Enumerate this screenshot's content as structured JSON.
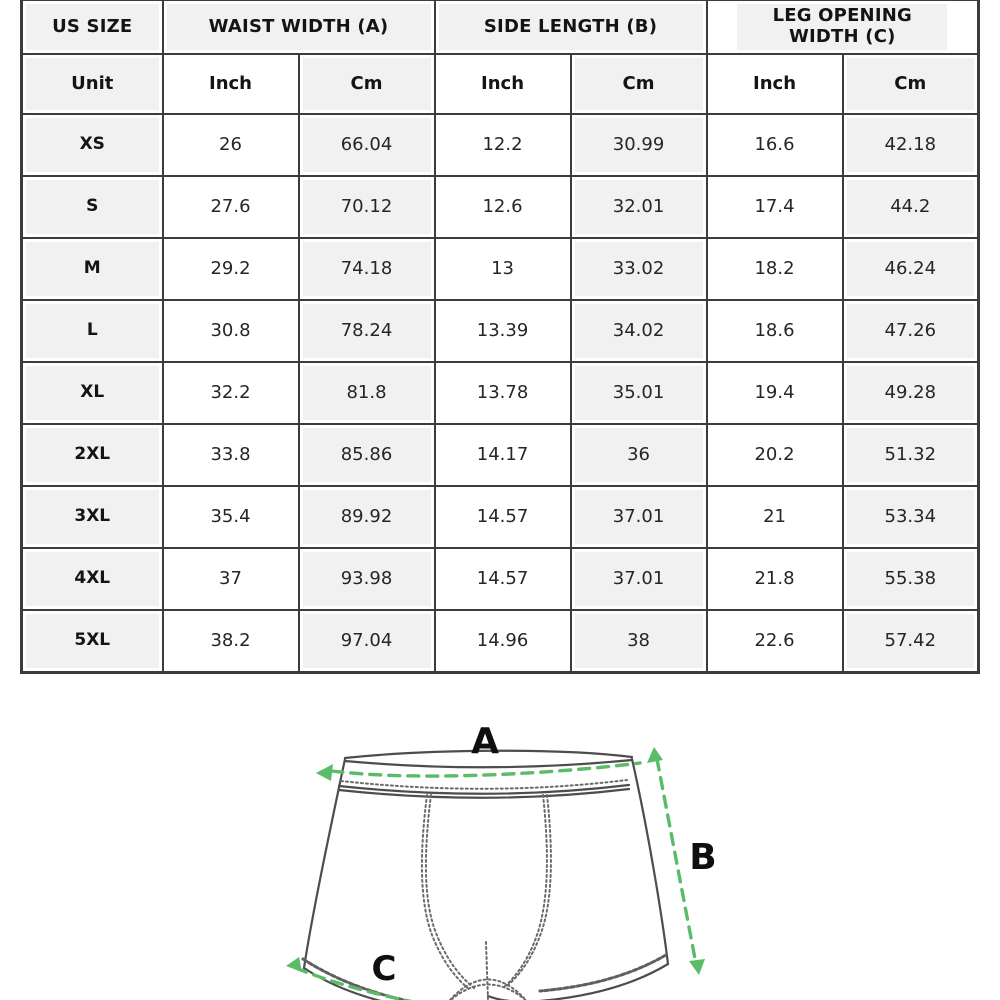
{
  "table": {
    "corner_label": "US SIZE",
    "groups": [
      {
        "label": "WAIST WIDTH (A)"
      },
      {
        "label": "SIDE LENGTH (B)"
      },
      {
        "label": "LEG OPENING WIDTH (C)"
      }
    ],
    "unit_row": [
      "Unit",
      "Inch",
      "Cm",
      "Inch",
      "Cm",
      "Inch",
      "Cm"
    ],
    "rows": [
      {
        "size": "XS",
        "values": [
          "26",
          "66.04",
          "12.2",
          "30.99",
          "16.6",
          "42.18"
        ]
      },
      {
        "size": "S",
        "values": [
          "27.6",
          "70.12",
          "12.6",
          "32.01",
          "17.4",
          "44.2"
        ]
      },
      {
        "size": "M",
        "values": [
          "29.2",
          "74.18",
          "13",
          "33.02",
          "18.2",
          "46.24"
        ]
      },
      {
        "size": "L",
        "values": [
          "30.8",
          "78.24",
          "13.39",
          "34.02",
          "18.6",
          "47.26"
        ]
      },
      {
        "size": "XL",
        "values": [
          "32.2",
          "81.8",
          "13.78",
          "35.01",
          "19.4",
          "49.28"
        ]
      },
      {
        "size": "2XL",
        "values": [
          "33.8",
          "85.86",
          "14.17",
          "36",
          "20.2",
          "51.32"
        ]
      },
      {
        "size": "3XL",
        "values": [
          "35.4",
          "89.92",
          "14.57",
          "37.01",
          "21",
          "53.34"
        ]
      },
      {
        "size": "4XL",
        "values": [
          "37",
          "93.98",
          "14.57",
          "37.01",
          "21.8",
          "55.38"
        ]
      },
      {
        "size": "5XL",
        "values": [
          "38.2",
          "97.04",
          "14.96",
          "38",
          "22.6",
          "57.42"
        ]
      }
    ]
  },
  "diagram": {
    "labels": {
      "a": "A",
      "b": "B",
      "c": "C"
    },
    "measure_color": "#5abb68",
    "outline_color": "#4d4d4d",
    "stitch_color": "#6a6a6a"
  },
  "colors": {
    "cell_gray": "#f1f1f1",
    "border": "#3c3c3c",
    "text": "#141414"
  }
}
